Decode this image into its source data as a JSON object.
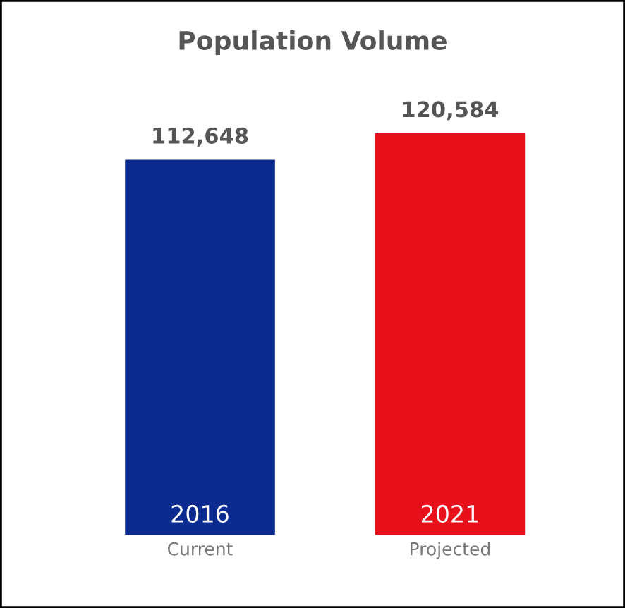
{
  "chart_data": {
    "type": "bar",
    "title": "Population Volume",
    "categories": [
      "Current",
      "Projected"
    ],
    "values": [
      112648,
      120584
    ],
    "colors": [
      "#0a2a8f",
      "#e8101a"
    ],
    "value_labels": [
      "112,648",
      "120,584"
    ],
    "tick_labels": "x",
    "grid": false,
    "legend": false,
    "annotations": [
      "2016",
      "2021"
    ]
  }
}
